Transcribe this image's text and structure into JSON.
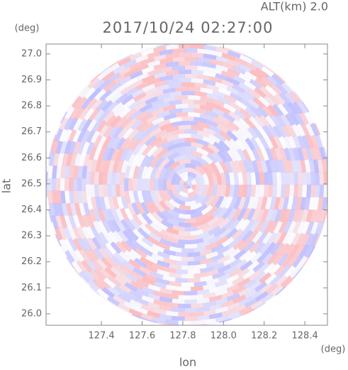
{
  "chart_data": {
    "type": "radar-ppi",
    "title": "2017/10/24 02:27:00",
    "subtitle": "ALT(km) 2.0",
    "x_label": "lon",
    "x_unit": "(deg)",
    "y_label": "lat",
    "y_unit": "(deg)",
    "xlim": [
      127.128,
      128.511
    ],
    "ylim": [
      25.956,
      27.038
    ],
    "xticks": [
      127.4,
      127.6,
      127.8,
      {
        "value": 128,
        "label": "128.0"
      },
      128.2,
      128.4
    ],
    "yticks": [
      {
        "value": 26,
        "label": "26.0"
      },
      26.1,
      26.2,
      26.3,
      26.4,
      26.5,
      26.6,
      26.7,
      26.8,
      26.9,
      {
        "value": 27,
        "label": "27.0"
      }
    ]
  }
}
